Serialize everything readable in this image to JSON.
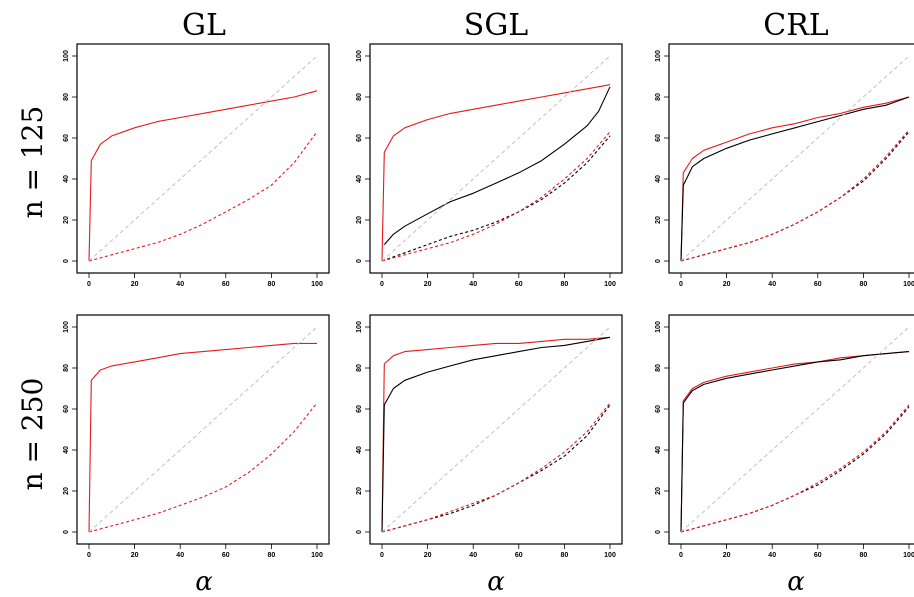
{
  "column_titles": [
    "GL",
    "SGL",
    "CRL"
  ],
  "row_titles": [
    "n = 125",
    "n = 250"
  ],
  "x_label": "α",
  "colors": {
    "red": "#e41a1c",
    "black": "#000000",
    "reference": "#bbbbbb"
  },
  "chart_data": [
    {
      "type": "line",
      "panel": "GL, n = 125",
      "xlim": [
        0,
        100
      ],
      "ylim": [
        0,
        100
      ],
      "xticks": [
        0,
        20,
        40,
        60,
        80,
        100
      ],
      "yticks": [
        0,
        20,
        40,
        60,
        80,
        100
      ],
      "series": [
        {
          "color": "red",
          "style": "solid",
          "x": [
            0,
            1,
            5,
            10,
            20,
            30,
            40,
            50,
            60,
            70,
            80,
            90,
            100
          ],
          "y": [
            0,
            49,
            57,
            61,
            65,
            68,
            70,
            72,
            74,
            76,
            78,
            80,
            83
          ]
        },
        {
          "color": "red",
          "style": "dashed",
          "x": [
            0,
            10,
            20,
            30,
            40,
            50,
            60,
            70,
            80,
            90,
            100
          ],
          "y": [
            0,
            3,
            6,
            9,
            13,
            18,
            24,
            30,
            37,
            48,
            63
          ]
        },
        {
          "color": "reference",
          "style": "dashed",
          "x": [
            0,
            100
          ],
          "y": [
            0,
            100
          ]
        }
      ]
    },
    {
      "type": "line",
      "panel": "SGL, n = 125",
      "xlim": [
        0,
        100
      ],
      "ylim": [
        0,
        100
      ],
      "xticks": [
        0,
        20,
        40,
        60,
        80,
        100
      ],
      "yticks": [
        0,
        20,
        40,
        60,
        80,
        100
      ],
      "series": [
        {
          "color": "red",
          "style": "solid",
          "x": [
            0,
            1,
            5,
            10,
            20,
            30,
            40,
            50,
            60,
            70,
            80,
            90,
            100
          ],
          "y": [
            0,
            53,
            61,
            65,
            69,
            72,
            74,
            76,
            78,
            80,
            82,
            84,
            86
          ]
        },
        {
          "color": "black",
          "style": "solid",
          "x": [
            1,
            5,
            10,
            20,
            30,
            40,
            50,
            60,
            70,
            80,
            90,
            95,
            100
          ],
          "y": [
            8,
            13,
            17,
            23,
            29,
            33,
            38,
            43,
            49,
            57,
            66,
            73,
            85
          ]
        },
        {
          "color": "black",
          "style": "dashed",
          "x": [
            0,
            10,
            20,
            30,
            40,
            50,
            60,
            70,
            80,
            90,
            100
          ],
          "y": [
            0,
            4,
            8,
            12,
            15,
            19,
            24,
            30,
            38,
            48,
            61
          ]
        },
        {
          "color": "red",
          "style": "dashed",
          "x": [
            0,
            10,
            20,
            30,
            40,
            50,
            60,
            70,
            80,
            90,
            100
          ],
          "y": [
            0,
            3,
            6,
            9,
            13,
            18,
            24,
            31,
            40,
            50,
            63
          ]
        },
        {
          "color": "reference",
          "style": "dashed",
          "x": [
            0,
            100
          ],
          "y": [
            0,
            100
          ]
        }
      ]
    },
    {
      "type": "line",
      "panel": "CRL, n = 125",
      "xlim": [
        0,
        100
      ],
      "ylim": [
        0,
        100
      ],
      "xticks": [
        0,
        20,
        40,
        60,
        80,
        100
      ],
      "yticks": [
        0,
        20,
        40,
        60,
        80,
        100
      ],
      "series": [
        {
          "color": "red",
          "style": "solid",
          "x": [
            0,
            1,
            5,
            10,
            20,
            30,
            40,
            50,
            60,
            70,
            80,
            90,
            100
          ],
          "y": [
            0,
            43,
            50,
            54,
            58,
            62,
            65,
            67,
            70,
            72,
            75,
            77,
            80
          ]
        },
        {
          "color": "black",
          "style": "solid",
          "x": [
            0,
            1,
            5,
            10,
            20,
            30,
            40,
            50,
            60,
            70,
            80,
            90,
            100
          ],
          "y": [
            0,
            37,
            46,
            50,
            55,
            59,
            62,
            65,
            68,
            71,
            74,
            76,
            80
          ]
        },
        {
          "color": "black",
          "style": "dashed",
          "x": [
            0,
            10,
            20,
            30,
            40,
            50,
            60,
            70,
            80,
            90,
            100
          ],
          "y": [
            0,
            3,
            6,
            9,
            13,
            18,
            24,
            31,
            39,
            50,
            63
          ]
        },
        {
          "color": "red",
          "style": "dashed",
          "x": [
            0,
            10,
            20,
            30,
            40,
            50,
            60,
            70,
            80,
            90,
            100
          ],
          "y": [
            0,
            3,
            6,
            9,
            13,
            18,
            24,
            31,
            40,
            51,
            64
          ]
        },
        {
          "color": "reference",
          "style": "dashed",
          "x": [
            0,
            100
          ],
          "y": [
            0,
            100
          ]
        }
      ]
    },
    {
      "type": "line",
      "panel": "GL, n = 250",
      "xlim": [
        0,
        100
      ],
      "ylim": [
        0,
        100
      ],
      "xticks": [
        0,
        20,
        40,
        60,
        80,
        100
      ],
      "yticks": [
        0,
        20,
        40,
        60,
        80,
        100
      ],
      "series": [
        {
          "color": "red",
          "style": "solid",
          "x": [
            0,
            1,
            5,
            10,
            20,
            30,
            40,
            50,
            60,
            70,
            80,
            90,
            100
          ],
          "y": [
            0,
            74,
            79,
            81,
            83,
            85,
            87,
            88,
            89,
            90,
            91,
            92,
            92
          ]
        },
        {
          "color": "red",
          "style": "dashed",
          "x": [
            0,
            10,
            20,
            30,
            40,
            50,
            60,
            70,
            80,
            90,
            100
          ],
          "y": [
            0,
            3,
            6,
            9,
            13,
            17,
            22,
            29,
            38,
            49,
            63
          ]
        },
        {
          "color": "reference",
          "style": "dashed",
          "x": [
            0,
            100
          ],
          "y": [
            0,
            100
          ]
        }
      ]
    },
    {
      "type": "line",
      "panel": "SGL, n = 250",
      "xlim": [
        0,
        100
      ],
      "ylim": [
        0,
        100
      ],
      "xticks": [
        0,
        20,
        40,
        60,
        80,
        100
      ],
      "yticks": [
        0,
        20,
        40,
        60,
        80,
        100
      ],
      "series": [
        {
          "color": "red",
          "style": "solid",
          "x": [
            0,
            1,
            5,
            10,
            20,
            30,
            40,
            50,
            60,
            70,
            80,
            90,
            100
          ],
          "y": [
            0,
            82,
            86,
            88,
            89,
            90,
            91,
            92,
            92,
            93,
            94,
            94,
            95
          ]
        },
        {
          "color": "black",
          "style": "solid",
          "x": [
            0,
            1,
            5,
            10,
            20,
            30,
            40,
            50,
            60,
            70,
            80,
            90,
            100
          ],
          "y": [
            0,
            62,
            70,
            74,
            78,
            81,
            84,
            86,
            88,
            90,
            91,
            93,
            95
          ]
        },
        {
          "color": "black",
          "style": "dashed",
          "x": [
            0,
            10,
            20,
            30,
            40,
            50,
            60,
            70,
            80,
            90,
            100
          ],
          "y": [
            0,
            3,
            6,
            9,
            13,
            18,
            24,
            30,
            37,
            47,
            62
          ]
        },
        {
          "color": "red",
          "style": "dashed",
          "x": [
            0,
            10,
            20,
            30,
            40,
            50,
            60,
            70,
            80,
            90,
            100
          ],
          "y": [
            0,
            3,
            6,
            10,
            14,
            18,
            24,
            31,
            39,
            49,
            63
          ]
        },
        {
          "color": "reference",
          "style": "dashed",
          "x": [
            0,
            100
          ],
          "y": [
            0,
            100
          ]
        }
      ]
    },
    {
      "type": "line",
      "panel": "CRL, n = 250",
      "xlim": [
        0,
        100
      ],
      "ylim": [
        0,
        100
      ],
      "xticks": [
        0,
        20,
        40,
        60,
        80,
        100
      ],
      "yticks": [
        0,
        20,
        40,
        60,
        80,
        100
      ],
      "series": [
        {
          "color": "red",
          "style": "solid",
          "x": [
            0,
            1,
            5,
            10,
            20,
            30,
            40,
            50,
            60,
            70,
            80,
            90,
            100
          ],
          "y": [
            0,
            64,
            70,
            73,
            76,
            78,
            80,
            82,
            83,
            85,
            86,
            87,
            88
          ]
        },
        {
          "color": "black",
          "style": "solid",
          "x": [
            0,
            1,
            5,
            10,
            20,
            30,
            40,
            50,
            60,
            70,
            80,
            90,
            100
          ],
          "y": [
            0,
            63,
            69,
            72,
            75,
            77,
            79,
            81,
            83,
            84,
            86,
            87,
            88
          ]
        },
        {
          "color": "black",
          "style": "dashed",
          "x": [
            0,
            10,
            20,
            30,
            40,
            50,
            60,
            70,
            80,
            90,
            100
          ],
          "y": [
            0,
            3,
            6,
            9,
            13,
            18,
            23,
            30,
            38,
            48,
            61
          ]
        },
        {
          "color": "red",
          "style": "dashed",
          "x": [
            0,
            10,
            20,
            30,
            40,
            50,
            60,
            70,
            80,
            90,
            100
          ],
          "y": [
            0,
            3,
            6,
            9,
            13,
            18,
            24,
            31,
            39,
            49,
            62
          ]
        },
        {
          "color": "reference",
          "style": "dashed",
          "x": [
            0,
            100
          ],
          "y": [
            0,
            100
          ]
        }
      ]
    }
  ]
}
